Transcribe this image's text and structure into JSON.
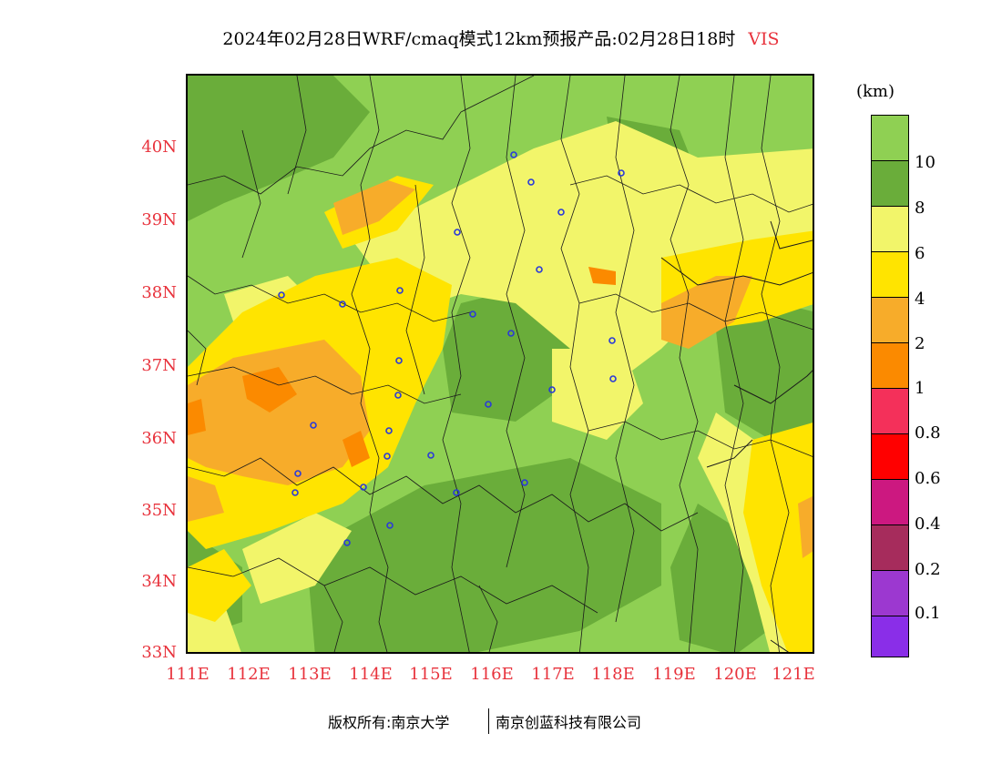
{
  "header": {
    "title": "2024年02月28日WRF/cmaq模式12km预报产品:02月28日18时",
    "variable": "VIS"
  },
  "map": {
    "lat_ticks": [
      "40N",
      "39N",
      "38N",
      "37N",
      "36N",
      "35N",
      "34N",
      "33N"
    ],
    "lon_ticks": [
      "111E",
      "112E",
      "113E",
      "114E",
      "115E",
      "116E",
      "117E",
      "118E",
      "119E",
      "120E",
      "121E"
    ]
  },
  "legend": {
    "units": "(km)",
    "levels": [
      {
        "label": "10",
        "color": "#8fd053"
      },
      {
        "label": "8",
        "color": "#6aad3a"
      },
      {
        "label": "6",
        "color": "#f2f56a"
      },
      {
        "label": "4",
        "color": "#ffe400"
      },
      {
        "label": "2",
        "color": "#f7ac2a"
      },
      {
        "label": "1",
        "color": "#fb8a00"
      },
      {
        "label": "0.8",
        "color": "#f4305a"
      },
      {
        "label": "0.6",
        "color": "#ff0000"
      },
      {
        "label": "0.4",
        "color": "#cc1880"
      },
      {
        "label": "0.2",
        "color": "#a62c5c"
      },
      {
        "label": "0.1",
        "color": "#9c38d0"
      },
      {
        "label": "",
        "color": "#8a2ee8"
      }
    ]
  },
  "footer": {
    "left": "版权所有:南京大学",
    "right": "南京创蓝科技有限公司"
  }
}
